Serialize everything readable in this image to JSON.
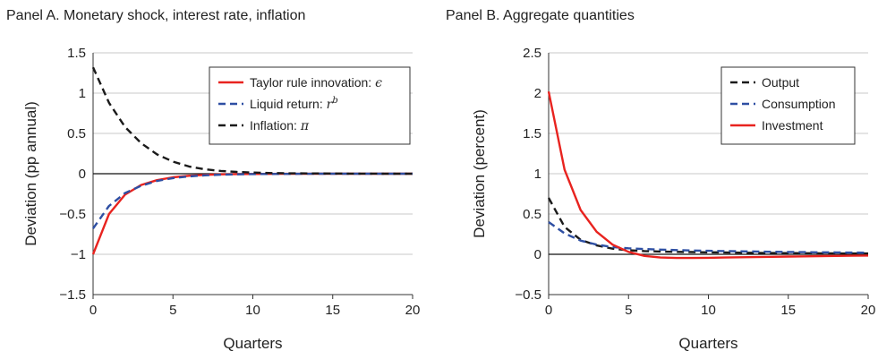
{
  "chart_data": [
    {
      "type": "line",
      "title": "Panel A. Monetary shock, interest rate, inflation",
      "xlabel": "Quarters",
      "ylabel": "Deviation (pp annual)",
      "xlim": [
        0,
        20
      ],
      "ylim": [
        -1.5,
        1.5
      ],
      "xticks": [
        0,
        5,
        10,
        15,
        20
      ],
      "yticks": [
        -1.5,
        -1,
        -0.5,
        0,
        0.5,
        1,
        1.5
      ],
      "ytick_labels": [
        "−1.5",
        "−1",
        "−0.5",
        "0",
        "0.5",
        "1",
        "1.5"
      ],
      "grid": "horizontal",
      "legend_position": "top-right",
      "x": [
        0,
        1,
        2,
        3,
        4,
        5,
        6,
        7,
        8,
        9,
        10,
        11,
        12,
        13,
        14,
        15,
        16,
        17,
        18,
        19,
        20
      ],
      "series": [
        {
          "name": "Taylor rule innovation: ",
          "symbol": "ϵ",
          "color": "#e8231f",
          "dash": "solid",
          "values": [
            -1.0,
            -0.5,
            -0.26,
            -0.14,
            -0.08,
            -0.045,
            -0.025,
            -0.014,
            -0.008,
            -0.005,
            -0.003,
            -0.002,
            -0.001,
            -0.001,
            0,
            0,
            0,
            0,
            0,
            0,
            0
          ]
        },
        {
          "name": "Liquid return: ",
          "symbol": "r",
          "sup": "b",
          "color": "#2e4fa3",
          "dash": "dashed",
          "values": [
            -0.68,
            -0.4,
            -0.24,
            -0.15,
            -0.09,
            -0.055,
            -0.033,
            -0.02,
            -0.012,
            -0.008,
            -0.005,
            -0.003,
            -0.002,
            -0.001,
            0,
            0,
            0,
            0,
            0,
            0,
            0
          ]
        },
        {
          "name": "Inflation: ",
          "symbol": "π",
          "color": "#1a1a1a",
          "dash": "dashed",
          "values": [
            1.32,
            0.88,
            0.58,
            0.38,
            0.24,
            0.15,
            0.09,
            0.055,
            0.035,
            0.022,
            0.014,
            0.009,
            0.006,
            0.004,
            0.003,
            0.002,
            0.001,
            0.001,
            0,
            0,
            0
          ]
        }
      ]
    },
    {
      "type": "line",
      "title": "Panel B. Aggregate quantities",
      "xlabel": "Quarters",
      "ylabel": "Deviation (percent)",
      "xlim": [
        0,
        20
      ],
      "ylim": [
        -0.5,
        2.5
      ],
      "xticks": [
        0,
        5,
        10,
        15,
        20
      ],
      "yticks": [
        -0.5,
        0,
        0.5,
        1,
        1.5,
        2,
        2.5
      ],
      "ytick_labels": [
        "−0.5",
        "0",
        "0.5",
        "1",
        "1.5",
        "2",
        "2.5"
      ],
      "grid": "horizontal",
      "legend_position": "top-right",
      "x": [
        0,
        1,
        2,
        3,
        4,
        5,
        6,
        7,
        8,
        9,
        10,
        11,
        12,
        13,
        14,
        15,
        16,
        17,
        18,
        19,
        20
      ],
      "series": [
        {
          "name": "Output",
          "color": "#1a1a1a",
          "dash": "dashed",
          "values": [
            0.7,
            0.34,
            0.18,
            0.11,
            0.07,
            0.05,
            0.04,
            0.035,
            0.03,
            0.028,
            0.025,
            0.023,
            0.02,
            0.018,
            0.016,
            0.014,
            0.013,
            0.012,
            0.011,
            0.01,
            0.01
          ]
        },
        {
          "name": "Consumption",
          "color": "#2e4fa3",
          "dash": "dashed",
          "values": [
            0.4,
            0.26,
            0.17,
            0.12,
            0.09,
            0.075,
            0.065,
            0.058,
            0.052,
            0.047,
            0.043,
            0.04,
            0.037,
            0.034,
            0.031,
            0.029,
            0.027,
            0.025,
            0.023,
            0.021,
            0.02
          ]
        },
        {
          "name": "Investment",
          "color": "#e8231f",
          "dash": "solid",
          "values": [
            2.02,
            1.05,
            0.55,
            0.28,
            0.12,
            0.03,
            -0.02,
            -0.04,
            -0.045,
            -0.045,
            -0.043,
            -0.04,
            -0.037,
            -0.034,
            -0.031,
            -0.028,
            -0.025,
            -0.022,
            -0.02,
            -0.018,
            -0.016
          ]
        }
      ]
    }
  ]
}
